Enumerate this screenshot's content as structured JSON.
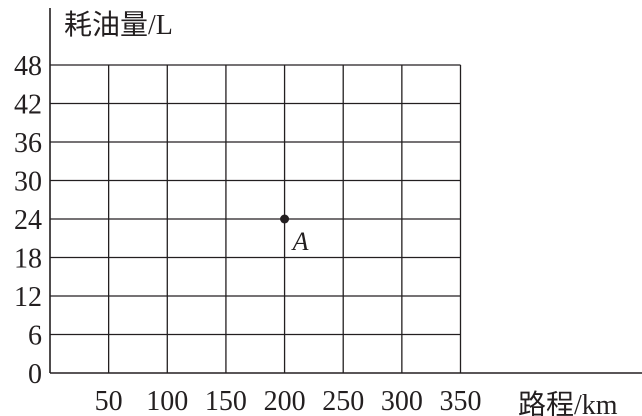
{
  "chart_data": {
    "type": "scatter",
    "ylabel": "耗油量/L",
    "xlabel": "路程/km",
    "x_ticks": [
      50,
      100,
      150,
      200,
      250,
      300,
      350
    ],
    "y_ticks": [
      0,
      6,
      12,
      18,
      24,
      30,
      36,
      42,
      48
    ],
    "xlim": [
      0,
      350
    ],
    "ylim": [
      0,
      48
    ],
    "grid": true,
    "points": [
      {
        "label": "A",
        "x": 200,
        "y": 24
      }
    ],
    "colors": {
      "ink": "#231f20",
      "background": "#ffffff"
    }
  }
}
